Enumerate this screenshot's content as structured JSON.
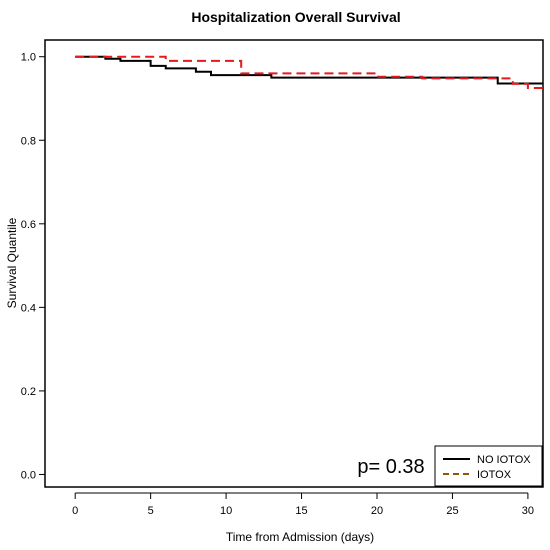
{
  "chart_data": {
    "type": "line",
    "title": "Hospitalization Overall Survival",
    "xlabel": "Time from Admission (days)",
    "ylabel": "Survival Quantile",
    "xlim": [
      -2,
      31
    ],
    "ylim": [
      -0.03,
      1.04
    ],
    "x_ticks": [
      0,
      5,
      10,
      15,
      20,
      25,
      30
    ],
    "y_ticks": [
      0.0,
      0.2,
      0.4,
      0.6,
      0.8,
      1.0
    ],
    "y_tick_labels": [
      "0.0",
      "0.2",
      "0.4",
      "0.6",
      "0.8",
      "1.0"
    ],
    "grid": false,
    "legend_position": "bottom-right",
    "annotation": "p= 0.38",
    "series": [
      {
        "name": "NO IOTOX",
        "color": "#000000",
        "line_style": "solid",
        "steps": [
          [
            0,
            1.0
          ],
          [
            2,
            0.995
          ],
          [
            3,
            0.99
          ],
          [
            5,
            0.978
          ],
          [
            6,
            0.972
          ],
          [
            8,
            0.964
          ],
          [
            9,
            0.956
          ],
          [
            13,
            0.95
          ],
          [
            28,
            0.936
          ],
          [
            31,
            0.936
          ]
        ]
      },
      {
        "name": "IOTOX",
        "color": "#e41a1c",
        "legend_color": "#8b5a00",
        "line_style": "dashed",
        "steps": [
          [
            0,
            1.0
          ],
          [
            6,
            0.99
          ],
          [
            11,
            0.96
          ],
          [
            20,
            0.952
          ],
          [
            23,
            0.948
          ],
          [
            29,
            0.935
          ],
          [
            30,
            0.925
          ],
          [
            31,
            0.918
          ]
        ]
      }
    ]
  }
}
